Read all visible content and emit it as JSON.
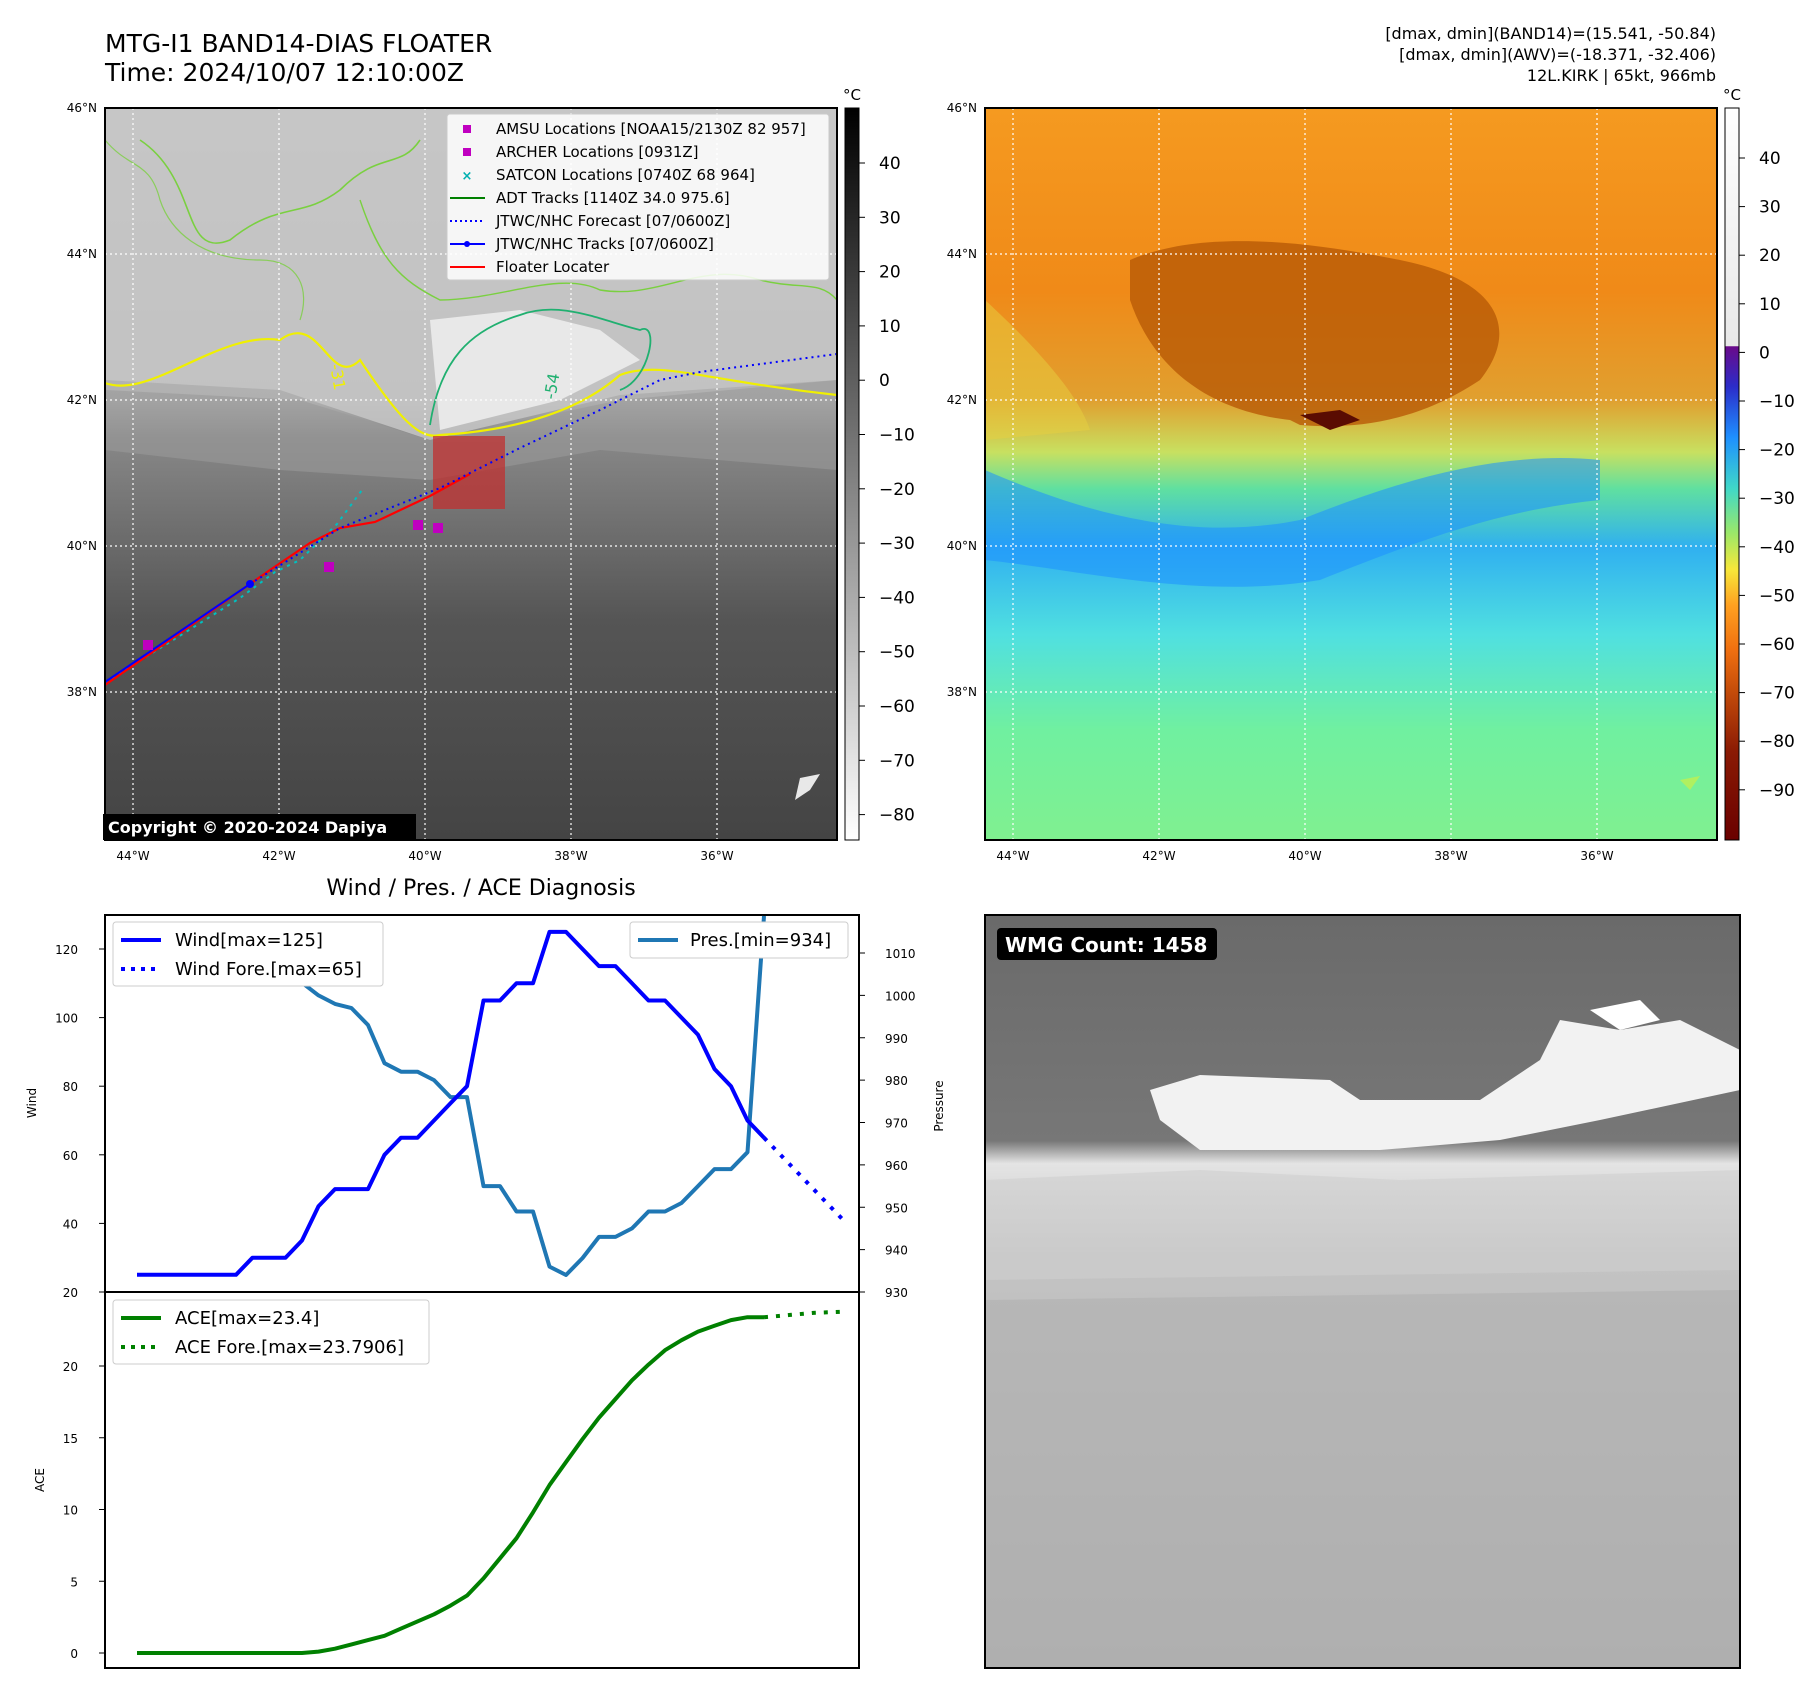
{
  "header": {
    "title_line1": "MTG-I1 BAND14-DIAS FLOATER",
    "title_line2": "Time: 2024/10/07 12:10:00Z",
    "info_line1": "[dmax, dmin](BAND14)=(15.541, -50.84)",
    "info_line2": "[dmax, dmin](AWV)=(-18.371, -32.406)",
    "info_line3": "12L.KIRK | 65kt, 966mb"
  },
  "maps": {
    "lat_labels": [
      "46°N",
      "44°N",
      "42°N",
      "40°N",
      "38°N"
    ],
    "lon_labels": [
      "44°W",
      "42°W",
      "40°W",
      "38°W",
      "36°W"
    ],
    "copyright": "Copyright © 2020-2024 Dapiya",
    "contour_labels": [
      "-31",
      "-54"
    ],
    "colorbar_unit": "°C",
    "ir_colorbar_ticks": [
      "40",
      "30",
      "20",
      "10",
      "0",
      "−10",
      "−20",
      "−30",
      "−40",
      "−50",
      "−60",
      "−70",
      "−80"
    ],
    "wv_colorbar_ticks": [
      "40",
      "30",
      "20",
      "10",
      "0",
      "−10",
      "−20",
      "−30",
      "−40",
      "−50",
      "−60",
      "−70",
      "−80",
      "−90"
    ],
    "legend": [
      {
        "label": "AMSU Locations [NOAA15/2130Z 82 957]",
        "color": "#c000c0",
        "marker": "square"
      },
      {
        "label": "ARCHER Locations [0931Z]",
        "color": "#c000c0",
        "marker": "square"
      },
      {
        "label": "SATCON Locations [0740Z 68 964]",
        "color": "#00b0b0",
        "marker": "x"
      },
      {
        "label": "ADT Tracks [1140Z 34.0 975.6]",
        "color": "#008000",
        "marker": "line"
      },
      {
        "label": "JTWC/NHC Forecast [07/0600Z]",
        "color": "#0000ff",
        "marker": "dotted"
      },
      {
        "label": "JTWC/NHC Tracks [07/0600Z]",
        "color": "#0000ff",
        "marker": "line-dot"
      },
      {
        "label": "Floater Locater",
        "color": "#ff0000",
        "marker": "line"
      }
    ]
  },
  "diag": {
    "title": "Wind / Pres. / ACE Diagnosis",
    "wind_ylabel": "Wind",
    "pres_ylabel": "Pressure",
    "ace_ylabel": "ACE",
    "wind_ticks": [
      "120",
      "100",
      "80",
      "60",
      "40",
      "20"
    ],
    "pres_ticks": [
      "1010",
      "1000",
      "990",
      "980",
      "970",
      "960",
      "950",
      "940",
      "930"
    ],
    "ace_ticks": [
      "20",
      "15",
      "10",
      "5",
      "0"
    ],
    "legend_wind": "Wind[max=125]",
    "legend_wind_fore": "Wind Fore.[max=65]",
    "legend_pres": "Pres.[min=934]",
    "legend_ace": "ACE[max=23.4]",
    "legend_ace_fore": "ACE Fore.[max=23.7906]"
  },
  "wmg": {
    "count_label": "WMG Count: 1458"
  },
  "chart_data": [
    {
      "type": "line",
      "title": "Wind / Pres. / ACE Diagnosis",
      "ylabel": "Wind",
      "ylim": [
        20,
        130
      ],
      "series": [
        {
          "name": "Wind[max=125]",
          "color": "#0000ff",
          "values": [
            25,
            25,
            25,
            25,
            25,
            25,
            25,
            30,
            30,
            30,
            35,
            45,
            50,
            50,
            50,
            60,
            65,
            65,
            70,
            75,
            80,
            105,
            105,
            110,
            110,
            125,
            125,
            120,
            115,
            115,
            110,
            105,
            105,
            100,
            95,
            85,
            80,
            70,
            65
          ]
        },
        {
          "name": "Wind Fore.[max=65]",
          "color": "#0000ff",
          "style": "dotted",
          "values": [
            65,
            60,
            55,
            50,
            45,
            40
          ]
        }
      ]
    },
    {
      "type": "line",
      "ylabel": "Pressure",
      "ylim": [
        930,
        1019
      ],
      "series": [
        {
          "name": "Pres.[min=934]",
          "color": "#1f77b4",
          "values": [
            1008,
            1008,
            1008,
            1008,
            1008,
            1008,
            1008,
            1008,
            1008,
            1006,
            1003,
            1000,
            998,
            997,
            993,
            984,
            982,
            982,
            980,
            976,
            976,
            955,
            955,
            949,
            949,
            936,
            934,
            938,
            943,
            943,
            945,
            949,
            949,
            951,
            955,
            959,
            959,
            963,
            1019
          ]
        }
      ]
    },
    {
      "type": "area",
      "ylabel": "ACE",
      "ylim": [
        -1,
        24.5
      ],
      "series": [
        {
          "name": "ACE[max=23.4]",
          "color": "#008000",
          "values": [
            0,
            0,
            0,
            0,
            0,
            0,
            0,
            0,
            0,
            0,
            0,
            0.1,
            0.3,
            0.6,
            0.9,
            1.2,
            1.7,
            2.2,
            2.7,
            3.3,
            4.0,
            5.2,
            6.6,
            8.0,
            9.8,
            11.7,
            13.3,
            14.9,
            16.4,
            17.7,
            19.0,
            20.1,
            21.1,
            21.8,
            22.4,
            22.8,
            23.2,
            23.4,
            23.4
          ]
        },
        {
          "name": "ACE Fore.[max=23.7906]",
          "color": "#008000",
          "style": "dotted",
          "values": [
            23.4,
            23.5,
            23.6,
            23.7,
            23.75,
            23.79
          ]
        }
      ]
    }
  ]
}
